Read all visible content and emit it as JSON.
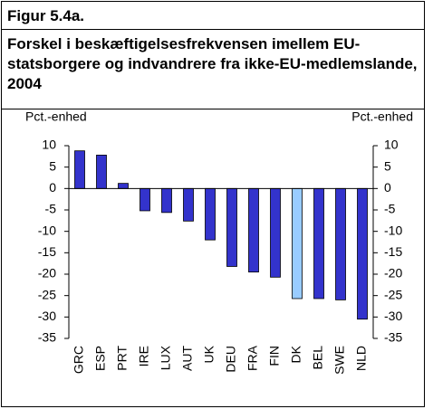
{
  "figure_label": "Figur 5.4a.",
  "chart_data": {
    "type": "bar",
    "title": "Forskel i beskæftigelsesfrekvensen imellem EU-statsborgere og indvandrere fra ikke-EU-medlemslande, 2004",
    "y_label": "Pct.-enhed",
    "y2_label": "Pct.-enhed",
    "categories": [
      "GRC",
      "ESP",
      "PRT",
      "IRE",
      "LUX",
      "AUT",
      "UK",
      "DEU",
      "FRA",
      "FIN",
      "DK",
      "BEL",
      "SWE",
      "NLD"
    ],
    "values": [
      8.8,
      7.8,
      1.2,
      -5.2,
      -5.6,
      -7.6,
      -12,
      -18.2,
      -19.5,
      -20.7,
      -25.7,
      -25.7,
      -26,
      -30.5
    ],
    "colors": [
      "#3333cc",
      "#3333cc",
      "#3333cc",
      "#3333cc",
      "#3333cc",
      "#3333cc",
      "#3333cc",
      "#3333cc",
      "#3333cc",
      "#3333cc",
      "#99ccff",
      "#3333cc",
      "#3333cc",
      "#3333cc"
    ],
    "ylim": [
      -35,
      10
    ],
    "yticks": [
      10,
      5,
      0,
      -5,
      -10,
      -15,
      -20,
      -25,
      -30,
      -35
    ],
    "y2lim": [
      -35,
      10
    ],
    "y2ticks": [
      10,
      5,
      0,
      -5,
      -10,
      -15,
      -20,
      -25,
      -30,
      -35
    ]
  }
}
